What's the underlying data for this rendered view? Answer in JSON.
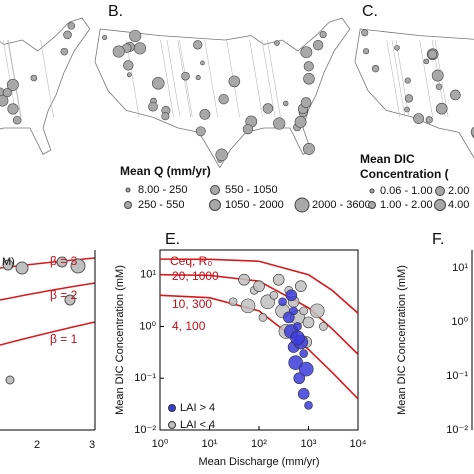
{
  "map_b": {
    "label": "B.",
    "legend_title": "Mean Q (mm/yr)",
    "legend_items": [
      "8.00 - 250",
      "250 - 550",
      "550 - 1050",
      "1050 - 2000",
      "2000 - 3600"
    ]
  },
  "map_c": {
    "label": "C.",
    "legend_title": [
      "Mean DIC",
      "Concentration ("
    ],
    "legend_items": [
      "0.06 - 1.00",
      "1.00 - 2.00",
      "2.00",
      "4.00"
    ]
  },
  "panel_left": {
    "unit_fragment": "M)",
    "beta_labels": [
      "β = 3",
      "β = 2",
      "β = 1"
    ],
    "xticks": [
      "2",
      "3"
    ]
  },
  "panel_f": {
    "label": "F.",
    "y_label": "Mean DIC Concentration (mM)",
    "yticks": [
      "10¹",
      "10⁰",
      "10⁻¹",
      "10⁻²"
    ]
  },
  "chart_data": {
    "type": "scatter",
    "label": "E.",
    "curve_header": "Ceq, R₀",
    "x_label": "Mean Discharge (mm/yr)",
    "y_label": "Mean DIC Concentration (mM)",
    "log_x": true,
    "log_y": true,
    "xlim": [
      1,
      10000
    ],
    "ylim": [
      0.01,
      30
    ],
    "xticks": [
      {
        "value": 1,
        "label": "10⁰"
      },
      {
        "value": 10,
        "label": "10¹"
      },
      {
        "value": 100,
        "label": "10²"
      },
      {
        "value": 1000,
        "label": "10³"
      },
      {
        "value": 10000,
        "label": "10⁴"
      }
    ],
    "yticks": [
      {
        "value": 0.01,
        "label": "10⁻²"
      },
      {
        "value": 0.1,
        "label": "10⁻¹"
      },
      {
        "value": 1,
        "label": "10⁰"
      },
      {
        "value": 10,
        "label": "10¹"
      }
    ],
    "series": [
      {
        "name": "20, 1000",
        "mode": "line",
        "color": "#d7191c",
        "x": [
          1,
          10,
          100,
          1000,
          3000,
          10000
        ],
        "values": [
          20,
          19.8,
          18.2,
          10,
          5,
          1.8
        ]
      },
      {
        "name": "10, 300",
        "mode": "line",
        "color": "#d7191c",
        "x": [
          1,
          10,
          100,
          1000,
          3000,
          10000
        ],
        "values": [
          10,
          9.7,
          7.5,
          2.3,
          0.9,
          0.29
        ]
      },
      {
        "name": "4, 100",
        "mode": "line",
        "color": "#d7191c",
        "x": [
          1,
          10,
          100,
          1000,
          3000,
          10000
        ],
        "values": [
          4,
          3.6,
          2,
          0.36,
          0.13,
          0.04
        ]
      },
      {
        "name": "LAI < 4",
        "mode": "points",
        "color": "#c0c0c0",
        "x": [
          30,
          50,
          60,
          80,
          100,
          150,
          200,
          250,
          300,
          400,
          500,
          600,
          800,
          1000,
          1500,
          2000,
          700,
          350,
          120,
          900
        ],
        "values": [
          3,
          8,
          2.5,
          5,
          6,
          3,
          4,
          8,
          2,
          5,
          3,
          1.5,
          2,
          1.2,
          2,
          1,
          6,
          0.8,
          1.5,
          0.5
        ]
      },
      {
        "name": "LAI > 4",
        "mode": "points",
        "color": "#3b3bdc",
        "x": [
          300,
          400,
          450,
          500,
          500,
          550,
          600,
          650,
          700,
          800,
          800,
          900,
          1000,
          450,
          600
        ],
        "values": [
          3,
          1.5,
          0.8,
          2,
          0.4,
          0.2,
          1,
          0.1,
          0.5,
          0.3,
          0.05,
          0.15,
          0.03,
          4,
          0.6
        ]
      }
    ]
  }
}
